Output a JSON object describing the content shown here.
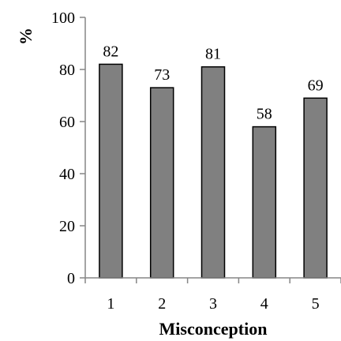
{
  "chart_data": {
    "type": "bar",
    "title": "",
    "xlabel": "Misconception",
    "ylabel": "%",
    "categories": [
      "1",
      "2",
      "3",
      "4",
      "5"
    ],
    "values": [
      82,
      73,
      81,
      58,
      69
    ],
    "data_labels": [
      "82",
      "73",
      "81",
      "58",
      "69"
    ],
    "ylim": [
      0,
      100
    ],
    "yticks": [
      "0",
      "20",
      "40",
      "60",
      "80",
      "100"
    ],
    "grid": false,
    "legend": "none",
    "colors": {
      "bar_fill": "#808080",
      "bar_stroke": "#000000",
      "axis": "#868686"
    }
  }
}
